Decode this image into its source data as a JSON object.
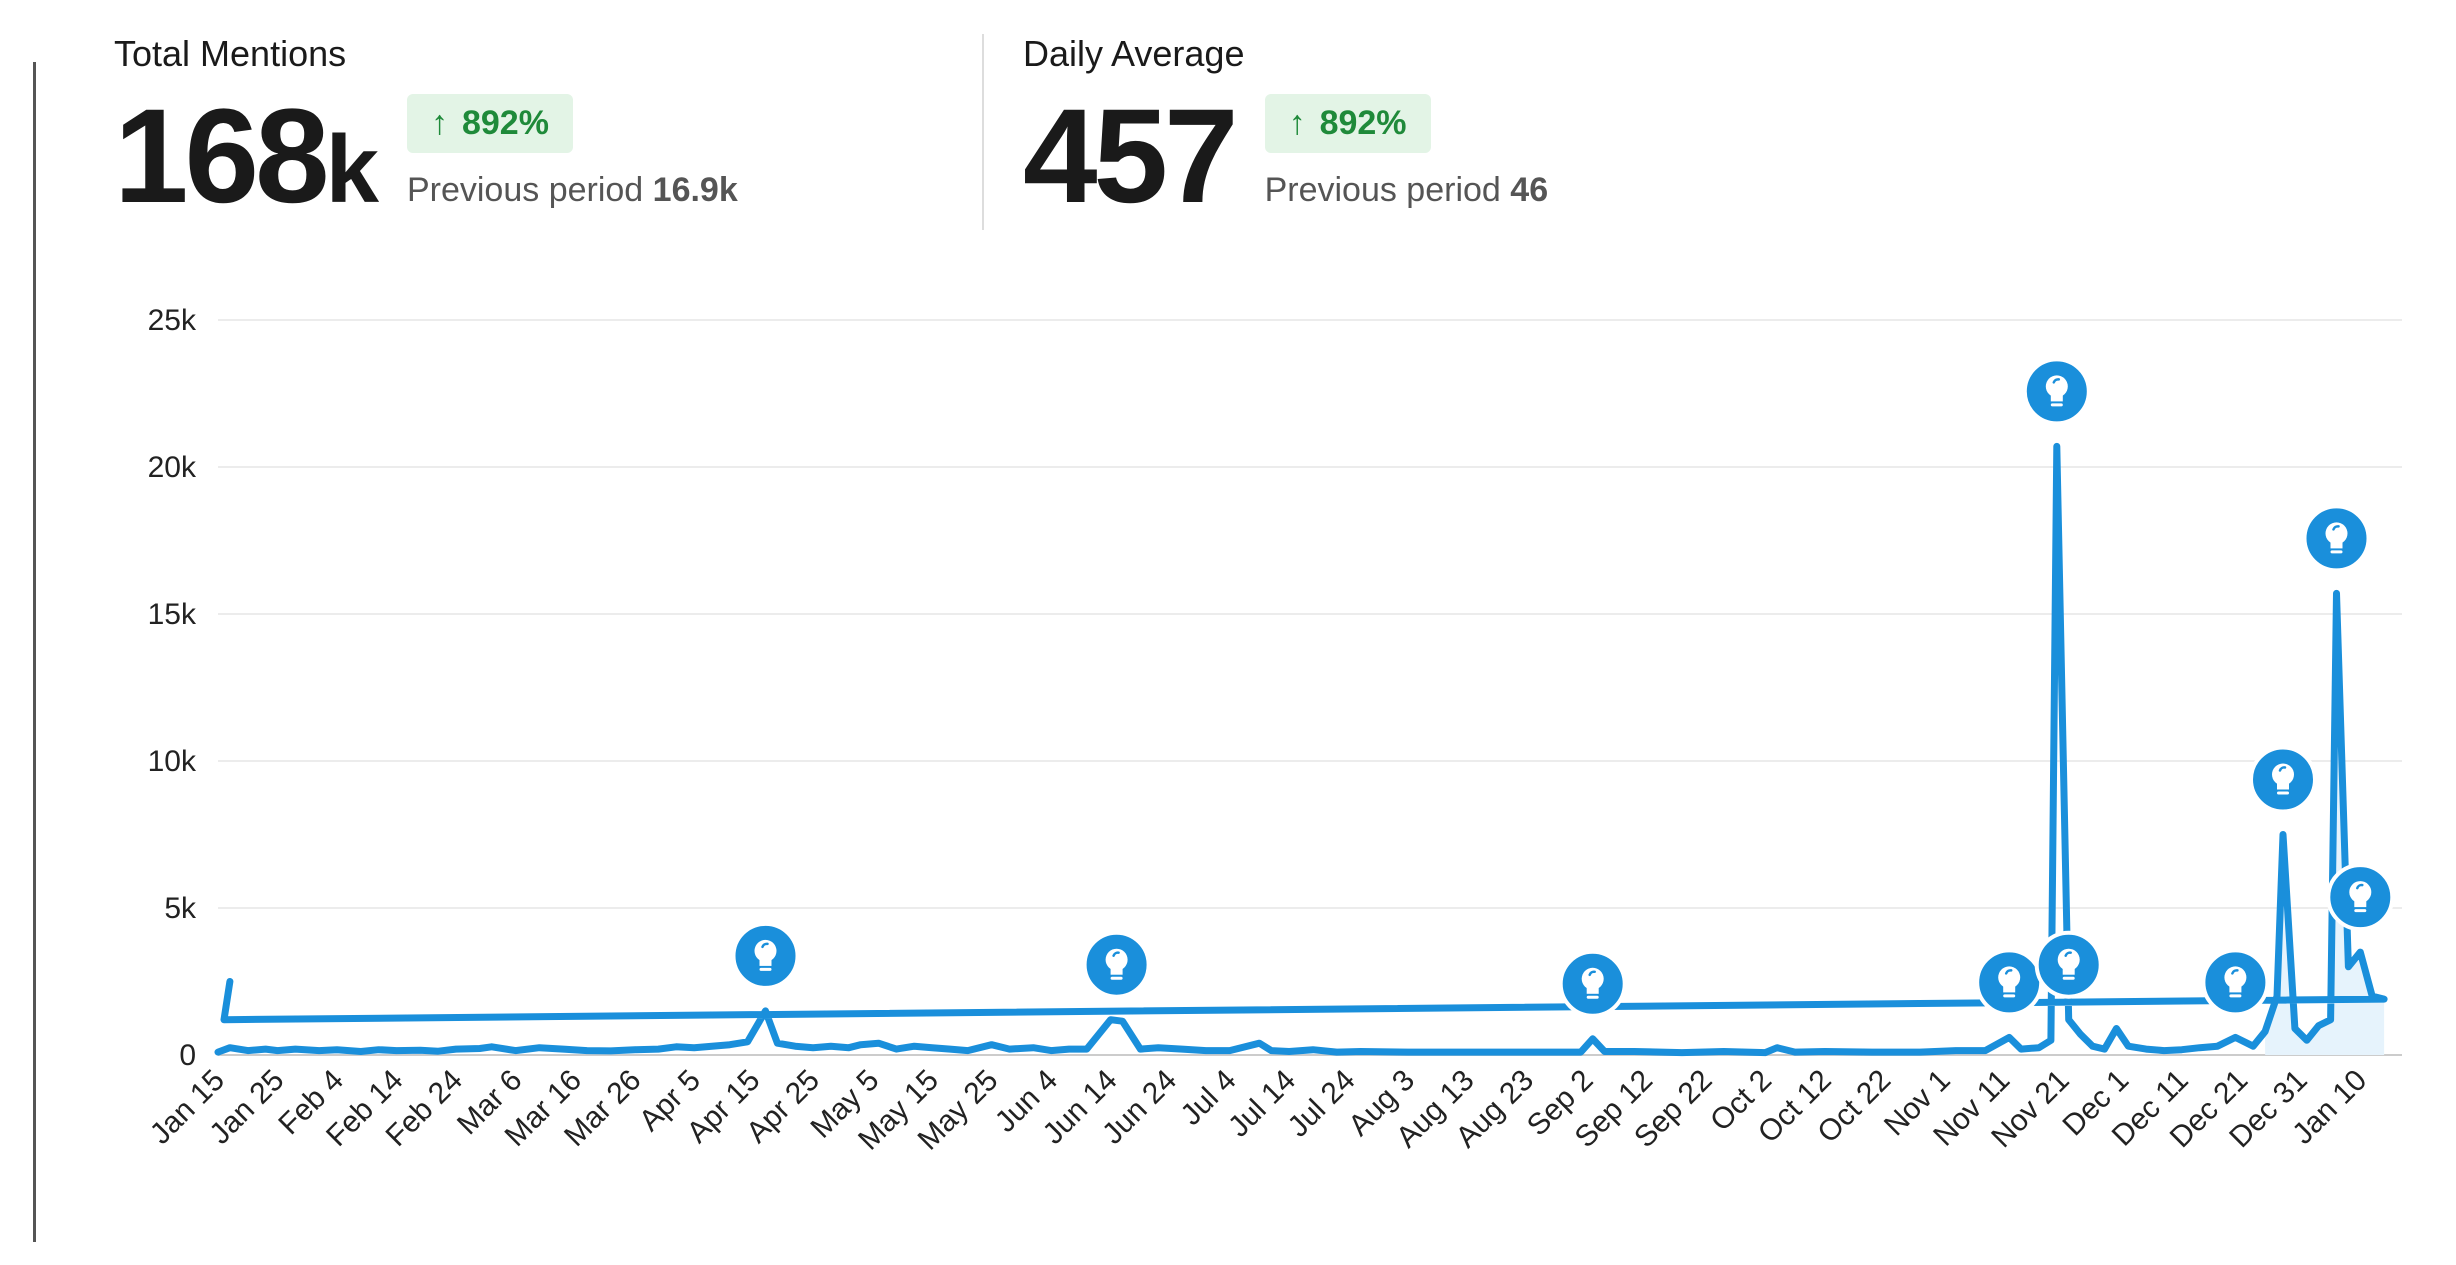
{
  "kpis": [
    {
      "title": "Total Mentions",
      "value": "168",
      "unit": "k",
      "change": "892%",
      "previous_label": "Previous period",
      "previous_value": "16.9k"
    },
    {
      "title": "Daily Average",
      "value": "457",
      "unit": "",
      "change": "892%",
      "previous_label": "Previous period",
      "previous_value": "46"
    }
  ],
  "colors": {
    "line": "#1a8fdb",
    "badge_bg": "#e3f4e6",
    "badge_text": "#1f8a3a",
    "marker": "#1a8fdb"
  },
  "chart_data": {
    "type": "area",
    "x_tick_labels": [
      "Jan 15",
      "Jan 25",
      "Feb 4",
      "Feb 14",
      "Feb 24",
      "Mar 6",
      "Mar 16",
      "Mar 26",
      "Apr 5",
      "Apr 15",
      "Apr 25",
      "May 5",
      "May 15",
      "May 25",
      "Jun 4",
      "Jun 14",
      "Jun 24",
      "Jul 4",
      "Jul 14",
      "Jul 24",
      "Aug 3",
      "Aug 13",
      "Aug 23",
      "Sep 2",
      "Sep 12",
      "Sep 22",
      "Oct 2",
      "Oct 12",
      "Oct 22",
      "Nov 1",
      "Nov 11",
      "Nov 21",
      "Dec 1",
      "Dec 11",
      "Dec 21",
      "Dec 31",
      "Jan 10"
    ],
    "y_ticks": [
      {
        "value": 0,
        "label": "0"
      },
      {
        "value": 5000,
        "label": "5k"
      },
      {
        "value": 10000,
        "label": "10k"
      },
      {
        "value": 15000,
        "label": "15k"
      },
      {
        "value": 20000,
        "label": "20k"
      },
      {
        "value": 25000,
        "label": "25k"
      }
    ],
    "ylim": [
      0,
      25000
    ],
    "grid": true,
    "series": [
      {
        "points": [
          [
            "Jan 15",
            100
          ],
          [
            "Jan 17",
            250
          ],
          [
            "Jan 20",
            150
          ],
          [
            "Jan 23",
            200
          ],
          [
            "Jan 25",
            150
          ],
          [
            "Jan 28",
            200
          ],
          [
            "Feb 1",
            150
          ],
          [
            "Feb 4",
            180
          ],
          [
            "Feb 8",
            120
          ],
          [
            "Feb 11",
            180
          ],
          [
            "Feb 14",
            150
          ],
          [
            "Feb 18",
            160
          ],
          [
            "Feb 21",
            130
          ],
          [
            "Feb 24",
            200
          ],
          [
            "Feb 28",
            220
          ],
          [
            "Mar 2",
            280
          ],
          [
            "Mar 6",
            150
          ],
          [
            "Mar 10",
            250
          ],
          [
            "Mar 14",
            200
          ],
          [
            "Mar 18",
            150
          ],
          [
            "Mar 22",
            140
          ],
          [
            "Mar 26",
            180
          ],
          [
            "Mar 30",
            200
          ],
          [
            "Apr 2",
            280
          ],
          [
            "Apr 5",
            250
          ],
          [
            "Apr 8",
            300
          ],
          [
            "Apr 11",
            350
          ],
          [
            "Apr 14",
            450
          ],
          [
            "Apr 17",
            1500
          ],
          [
            "Apr 19",
            400
          ],
          [
            "Apr 22",
            300
          ],
          [
            "Apr 25",
            250
          ],
          [
            "Apr 28",
            300
          ],
          [
            "May 1",
            250
          ],
          [
            "May 3",
            350
          ],
          [
            "May 6",
            400
          ],
          [
            "May 9",
            200
          ],
          [
            "May 12",
            300
          ],
          [
            "May 15",
            250
          ],
          [
            "May 18",
            200
          ],
          [
            "May 21",
            150
          ],
          [
            "May 25",
            350
          ],
          [
            "May 28",
            200
          ],
          [
            "Jun 1",
            250
          ],
          [
            "Jun 4",
            150
          ],
          [
            "Jun 7",
            200
          ],
          [
            "Jun 10",
            200
          ],
          [
            "Jun 14",
            1200
          ],
          [
            "Jun 16",
            1150
          ],
          [
            "Jun 19",
            200
          ],
          [
            "Jun 22",
            250
          ],
          [
            "Jun 26",
            200
          ],
          [
            "Jun 30",
            150
          ],
          [
            "Jul 4",
            150
          ],
          [
            "Jul 9",
            400
          ],
          [
            "Jul 11",
            150
          ],
          [
            "Jul 14",
            120
          ],
          [
            "Jul 18",
            180
          ],
          [
            "Jul 22",
            100
          ],
          [
            "Jul 26",
            120
          ],
          [
            "Aug 3",
            100
          ],
          [
            "Aug 10",
            100
          ],
          [
            "Aug 18",
            100
          ],
          [
            "Aug 26",
            100
          ],
          [
            "Sep 1",
            100
          ],
          [
            "Sep 3",
            550
          ],
          [
            "Sep 5",
            120
          ],
          [
            "Sep 10",
            120
          ],
          [
            "Sep 18",
            80
          ],
          [
            "Sep 25",
            120
          ],
          [
            "Oct 2",
            80
          ],
          [
            "Oct 4",
            250
          ],
          [
            "Oct 7",
            100
          ],
          [
            "Oct 12",
            120
          ],
          [
            "Oct 20",
            100
          ],
          [
            "Oct 28",
            100
          ],
          [
            "Nov 3",
            150
          ],
          [
            "Nov 8",
            150
          ],
          [
            "Nov 12",
            600
          ],
          [
            "Nov 14",
            200
          ],
          [
            "Nov 17",
            250
          ],
          [
            "Nov 19",
            500
          ],
          [
            "Nov 20",
            20700
          ],
          [
            "Nov 22",
            1200
          ],
          [
            "Nov 24",
            700
          ],
          [
            "Nov 26",
            300
          ],
          [
            "Nov 28",
            200
          ],
          [
            "Nov 30",
            900
          ],
          [
            "Dec 2",
            300
          ],
          [
            "Dec 5",
            200
          ],
          [
            "Dec 8",
            150
          ],
          [
            "Dec 11",
            180
          ],
          [
            "Dec 14",
            250
          ],
          [
            "Dec 17",
            300
          ],
          [
            "Dec 20",
            600
          ],
          [
            "Dec 23",
            300
          ],
          [
            "Dec 25",
            800
          ],
          [
            "Dec 27",
            2000
          ],
          [
            "Dec 28",
            7500
          ],
          [
            "Dec 30",
            900
          ],
          [
            "Jan 1",
            500
          ],
          [
            "Jan 3",
            1000
          ],
          [
            "Jan 5",
            1200
          ],
          [
            "Jan 6",
            15700
          ],
          [
            "Jan 8",
            3000
          ],
          [
            "Jan 10",
            3500
          ],
          [
            "Jan 12",
            2000
          ],
          [
            "Jan 14",
            1900
          ],
          [
            "Jan 16",
            1200
          ],
          [
            "Jan 17",
            2500
          ]
        ]
      }
    ],
    "annotations": [
      {
        "x": "Apr 17",
        "y": 1500
      },
      {
        "x": "Jun 15",
        "y": 1200
      },
      {
        "x": "Sep 3",
        "y": 550
      },
      {
        "x": "Nov 12",
        "y": 600
      },
      {
        "x": "Nov 20",
        "y": 20700
      },
      {
        "x": "Nov 22",
        "y": 1200
      },
      {
        "x": "Dec 20",
        "y": 600
      },
      {
        "x": "Dec 28",
        "y": 7500
      },
      {
        "x": "Jan 6",
        "y": 15700
      },
      {
        "x": "Jan 10",
        "y": 3500
      }
    ]
  }
}
